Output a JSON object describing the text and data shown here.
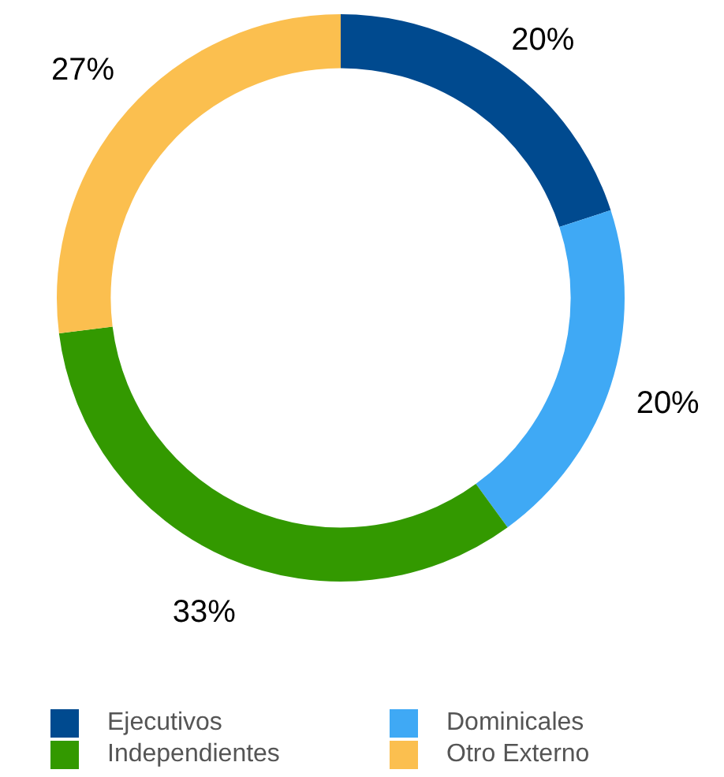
{
  "chart_data": {
    "type": "donut",
    "categories": [
      "Ejecutivos",
      "Dominicales",
      "Independientes",
      "Otro Externo"
    ],
    "values": [
      20,
      20,
      33,
      27
    ],
    "colors": [
      "#004a8f",
      "#3fa9f5",
      "#339900",
      "#fbbf4f"
    ],
    "value_labels": [
      "20%",
      "20%",
      "33%",
      "27%"
    ],
    "legend": "bottom"
  }
}
